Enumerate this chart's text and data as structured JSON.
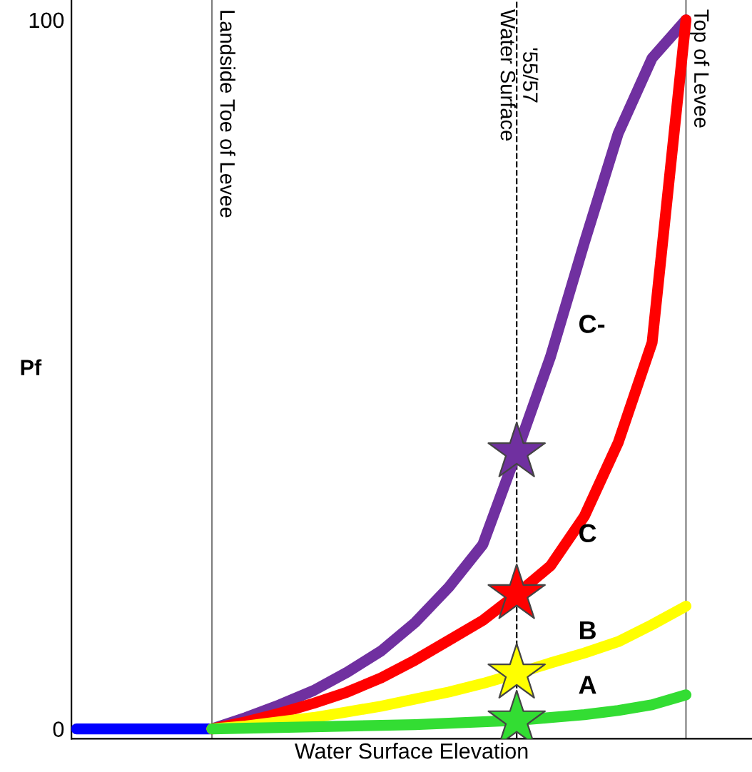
{
  "chart_data": {
    "type": "line",
    "xlabel": "Water Surface Elevation",
    "ylabel": "Pf",
    "categories": [
      null,
      null,
      null,
      null,
      null,
      null,
      null,
      null,
      null,
      null,
      null,
      null,
      null,
      null,
      null,
      null,
      null,
      null,
      null
    ],
    "ylim": [
      -1.4,
      102.8
    ],
    "yticks": [
      0,
      100
    ],
    "tick_labels": "y",
    "series": [
      {
        "color": "#0000ff",
        "values": [
          0,
          0,
          0,
          0,
          0,
          null,
          null,
          null,
          null,
          null,
          null,
          null,
          null,
          null,
          null,
          null,
          null,
          null,
          null
        ]
      },
      {
        "name": "C-",
        "color": "#7030a0",
        "values": [
          null,
          null,
          null,
          null,
          0,
          1.6,
          3.4,
          5.4,
          8,
          11,
          15,
          20,
          26,
          39,
          52.5,
          68.6,
          84,
          94.6,
          100
        ]
      },
      {
        "name": "C",
        "color": "#ff0000",
        "values": [
          null,
          null,
          null,
          null,
          0,
          1,
          2.2,
          3.6,
          5.2,
          7.2,
          9.7,
          12.5,
          15.3,
          19,
          23,
          30,
          40.4,
          54.5,
          100
        ]
      },
      {
        "name": "B",
        "color": "#ffff00",
        "values": [
          null,
          null,
          null,
          null,
          0,
          0.4,
          1,
          1.6,
          2.4,
          3.2,
          4.2,
          5.2,
          6.4,
          7.8,
          9.3,
          10.7,
          12.3,
          14.7,
          17.3
        ]
      },
      {
        "name": "A",
        "color": "#33dd33",
        "values": [
          null,
          null,
          null,
          null,
          0,
          0.1,
          0.2,
          0.3,
          0.4,
          0.5,
          0.6,
          0.8,
          1,
          1.2,
          1.6,
          2,
          2.6,
          3.4,
          4.8
        ]
      },
      {
        "type": "scatter",
        "marker": "star",
        "color": "#7030a0",
        "values": [
          null,
          null,
          null,
          null,
          null,
          null,
          null,
          null,
          null,
          null,
          null,
          null,
          null,
          39,
          null,
          null,
          null,
          null,
          null
        ]
      },
      {
        "type": "scatter",
        "marker": "star",
        "color": "#ff0000",
        "values": [
          null,
          null,
          null,
          null,
          null,
          null,
          null,
          null,
          null,
          null,
          null,
          null,
          null,
          19,
          null,
          null,
          null,
          null,
          null
        ]
      },
      {
        "type": "scatter",
        "marker": "star",
        "color": "#ffff00",
        "values": [
          null,
          null,
          null,
          null,
          null,
          null,
          null,
          null,
          null,
          null,
          null,
          null,
          null,
          7.8,
          null,
          null,
          null,
          null,
          null
        ]
      },
      {
        "type": "scatter",
        "marker": "star",
        "color": "#33dd33",
        "values": [
          null,
          null,
          null,
          null,
          null,
          null,
          null,
          null,
          null,
          null,
          null,
          null,
          null,
          1.2,
          null,
          null,
          null,
          null,
          null
        ]
      }
    ],
    "annotations": [
      "Landside Toe of Levee",
      "'55/57\nWater Surface",
      "Top of Levee"
    ]
  }
}
